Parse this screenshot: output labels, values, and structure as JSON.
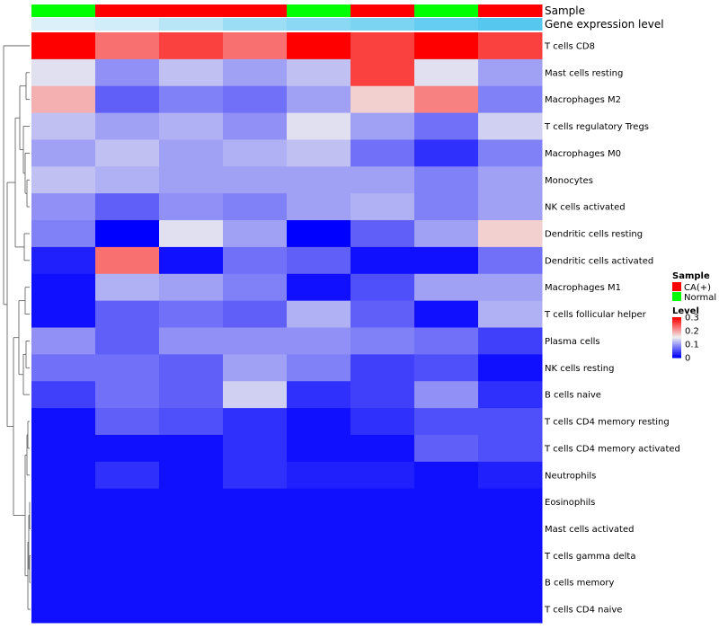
{
  "chart_data": {
    "type": "heatmap",
    "annotation_rows": [
      {
        "name": "Sample",
        "values": [
          "Normal",
          "CA(+)",
          "CA(+)",
          "CA(+)",
          "Normal",
          "CA(+)",
          "Normal",
          "CA(+)"
        ]
      },
      {
        "name": "Gene expression level",
        "values": [
          0.12,
          0.2,
          0.35,
          0.55,
          0.65,
          0.75,
          0.9,
          1.0
        ]
      }
    ],
    "rows": [
      "T cells CD8",
      "Mast cells resting",
      "Macrophages M2",
      "T cells regulatory  Tregs",
      "Macrophages M0",
      "Monocytes",
      "NK cells activated",
      "Dendritic cells resting",
      "Dendritic cells activated",
      "Macrophages M1",
      "T cells follicular helper",
      "Plasma cells",
      "NK cells resting",
      "B cells naive",
      "T cells CD4 memory resting",
      "T cells CD4 memory activated",
      "Neutrophils",
      "Eosinophils",
      "Mast cells activated",
      "T cells gamma delta",
      "B cells memory",
      "T cells CD4 naive"
    ],
    "values": [
      [
        0.3,
        0.23,
        0.26,
        0.23,
        0.3,
        0.26,
        0.3,
        0.26
      ],
      [
        0.14,
        0.09,
        0.12,
        0.1,
        0.12,
        0.26,
        0.14,
        0.1
      ],
      [
        0.19,
        0.06,
        0.08,
        0.07,
        0.1,
        0.17,
        0.22,
        0.08
      ],
      [
        0.12,
        0.1,
        0.11,
        0.09,
        0.14,
        0.1,
        0.07,
        0.13
      ],
      [
        0.1,
        0.12,
        0.1,
        0.11,
        0.12,
        0.07,
        0.03,
        0.08
      ],
      [
        0.12,
        0.11,
        0.1,
        0.1,
        0.1,
        0.1,
        0.08,
        0.1
      ],
      [
        0.09,
        0.06,
        0.09,
        0.08,
        0.1,
        0.11,
        0.08,
        0.1
      ],
      [
        0.08,
        0.0,
        0.14,
        0.1,
        0.0,
        0.06,
        0.1,
        0.17
      ],
      [
        0.02,
        0.23,
        0.01,
        0.07,
        0.06,
        0.01,
        0.01,
        0.07
      ],
      [
        0.01,
        0.11,
        0.1,
        0.08,
        0.01,
        0.05,
        0.1,
        0.1
      ],
      [
        0.01,
        0.06,
        0.07,
        0.06,
        0.11,
        0.06,
        0.01,
        0.11
      ],
      [
        0.09,
        0.06,
        0.09,
        0.09,
        0.09,
        0.08,
        0.07,
        0.04
      ],
      [
        0.07,
        0.07,
        0.06,
        0.1,
        0.08,
        0.04,
        0.05,
        0.01
      ],
      [
        0.04,
        0.07,
        0.06,
        0.13,
        0.03,
        0.04,
        0.09,
        0.03
      ],
      [
        0.01,
        0.06,
        0.05,
        0.03,
        0.01,
        0.03,
        0.05,
        0.05
      ],
      [
        0.01,
        0.01,
        0.01,
        0.03,
        0.01,
        0.01,
        0.06,
        0.05
      ],
      [
        0.01,
        0.03,
        0.01,
        0.03,
        0.02,
        0.02,
        0.01,
        0.02
      ],
      [
        0.01,
        0.01,
        0.01,
        0.01,
        0.01,
        0.01,
        0.01,
        0.01
      ],
      [
        0.01,
        0.01,
        0.01,
        0.01,
        0.01,
        0.01,
        0.01,
        0.01
      ],
      [
        0.01,
        0.01,
        0.01,
        0.01,
        0.01,
        0.01,
        0.01,
        0.01
      ],
      [
        0.01,
        0.01,
        0.01,
        0.01,
        0.01,
        0.01,
        0.01,
        0.01
      ],
      [
        0.01,
        0.01,
        0.01,
        0.01,
        0.01,
        0.01,
        0.01,
        0.01
      ]
    ],
    "color_scale": {
      "min": 0,
      "mid": 0.15,
      "max": 0.3,
      "low": "#0000ff",
      "midColor": "#f0f0f0",
      "high": "#ff0000"
    },
    "legend": {
      "sample_title": "Sample",
      "sample_items": [
        {
          "label": "CA(+)",
          "color": "#ff0000"
        },
        {
          "label": "Normal",
          "color": "#00ff00"
        }
      ],
      "level_title": "Level",
      "level_ticks": [
        "0.3",
        "0.2",
        "0.1",
        "0"
      ],
      "level_tick_values": [
        0.3,
        0.2,
        0.1,
        0
      ]
    },
    "dendrogram_side": "left"
  }
}
